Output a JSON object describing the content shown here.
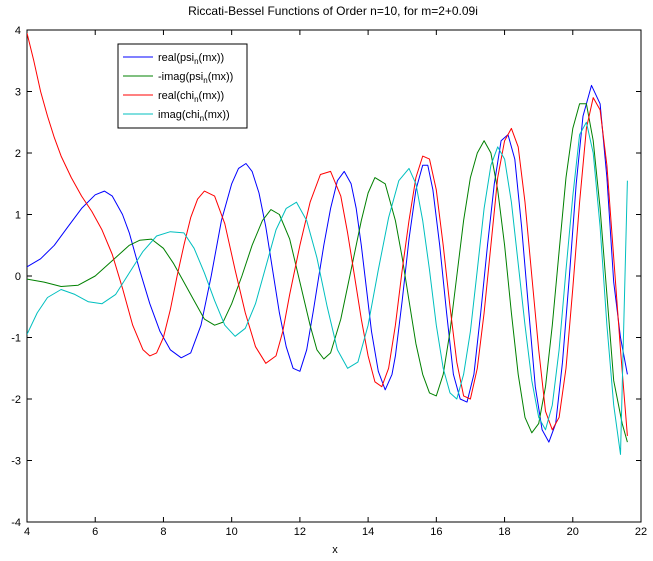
{
  "chart_data": {
    "type": "line",
    "title": "Riccati-Bessel Functions of Order n=10, for m=2+0.09i",
    "xlabel": "x",
    "ylabel": "",
    "xlim": [
      4,
      22
    ],
    "ylim": [
      -4,
      4
    ],
    "xticks": [
      4,
      6,
      8,
      10,
      12,
      14,
      16,
      18,
      20,
      22
    ],
    "yticks": [
      -4,
      -3,
      -2,
      -1,
      0,
      1,
      2,
      3,
      4
    ],
    "grid": false,
    "legend_position": "top-left",
    "series": [
      {
        "name": "real(psi_n(mx))",
        "legend_main": "real(psi",
        "legend_sub": "n",
        "legend_tail": "(mx))",
        "color": "#0000ff",
        "x": [
          4.0,
          4.4,
          4.8,
          5.2,
          5.6,
          6.0,
          6.27,
          6.5,
          6.8,
          7.0,
          7.3,
          7.6,
          7.9,
          8.2,
          8.52,
          8.8,
          9.1,
          9.4,
          9.7,
          10.0,
          10.2,
          10.42,
          10.6,
          10.8,
          11.0,
          11.2,
          11.4,
          11.6,
          11.8,
          12.0,
          12.2,
          12.4,
          12.5,
          12.7,
          12.9,
          13.1,
          13.3,
          13.5,
          13.65,
          13.8,
          13.95,
          14.1,
          14.3,
          14.5,
          14.7,
          14.8,
          15.0,
          15.2,
          15.4,
          15.6,
          15.75,
          15.9,
          16.1,
          16.3,
          16.5,
          16.7,
          16.9,
          17.1,
          17.3,
          17.5,
          17.7,
          17.9,
          18.1,
          18.3,
          18.5,
          18.7,
          18.9,
          19.1,
          19.3,
          19.5,
          19.7,
          19.9,
          20.1,
          20.3,
          20.55,
          20.8,
          21.0,
          21.2,
          21.4,
          21.6
        ],
        "y": [
          0.15,
          0.28,
          0.5,
          0.8,
          1.1,
          1.32,
          1.38,
          1.3,
          1.0,
          0.7,
          0.1,
          -0.45,
          -0.9,
          -1.2,
          -1.33,
          -1.25,
          -0.8,
          0.0,
          0.9,
          1.5,
          1.75,
          1.83,
          1.7,
          1.35,
          0.8,
          0.1,
          -0.6,
          -1.15,
          -1.5,
          -1.55,
          -1.2,
          -0.55,
          -0.2,
          0.5,
          1.1,
          1.55,
          1.7,
          1.5,
          1.1,
          0.5,
          -0.2,
          -0.9,
          -1.55,
          -1.85,
          -1.6,
          -1.3,
          -0.4,
          0.6,
          1.4,
          1.8,
          1.8,
          1.4,
          0.5,
          -0.6,
          -1.6,
          -2.0,
          -2.05,
          -1.6,
          -0.6,
          0.5,
          1.5,
          2.2,
          2.3,
          1.9,
          0.8,
          -0.5,
          -1.8,
          -2.5,
          -2.7,
          -2.4,
          -1.4,
          0.0,
          1.5,
          2.6,
          3.1,
          2.8,
          1.6,
          -0.1,
          -1.0,
          -1.6
        ]
      },
      {
        "name": "-imag(psi_n(mx))",
        "legend_main": "-imag(psi",
        "legend_sub": "n",
        "legend_tail": "(mx))",
        "color": "#008000",
        "x": [
          4.0,
          4.5,
          5.0,
          5.5,
          6.0,
          6.5,
          7.0,
          7.3,
          7.65,
          8.0,
          8.3,
          8.6,
          8.9,
          9.2,
          9.5,
          9.75,
          10.0,
          10.3,
          10.6,
          10.9,
          11.15,
          11.4,
          11.7,
          12.0,
          12.3,
          12.5,
          12.7,
          12.9,
          13.2,
          13.5,
          13.8,
          14.0,
          14.2,
          14.5,
          14.8,
          15.0,
          15.2,
          15.4,
          15.6,
          15.8,
          16.0,
          16.2,
          16.4,
          16.6,
          16.8,
          17.0,
          17.2,
          17.4,
          17.6,
          17.8,
          18.0,
          18.2,
          18.4,
          18.6,
          18.8,
          19.0,
          19.2,
          19.4,
          19.6,
          19.8,
          20.0,
          20.2,
          20.4,
          20.6,
          20.8,
          21.0,
          21.2,
          21.45,
          21.6
        ],
        "y": [
          -0.05,
          -0.1,
          -0.17,
          -0.15,
          0.0,
          0.25,
          0.5,
          0.58,
          0.6,
          0.45,
          0.2,
          -0.1,
          -0.4,
          -0.7,
          -0.8,
          -0.75,
          -0.45,
          0.0,
          0.5,
          0.9,
          1.08,
          1.0,
          0.6,
          -0.1,
          -0.8,
          -1.2,
          -1.35,
          -1.25,
          -0.7,
          0.1,
          0.9,
          1.35,
          1.6,
          1.5,
          0.9,
          0.3,
          -0.4,
          -1.1,
          -1.6,
          -1.9,
          -1.95,
          -1.6,
          -0.9,
          0.0,
          0.9,
          1.6,
          2.0,
          2.2,
          2.0,
          1.4,
          0.5,
          -0.6,
          -1.6,
          -2.3,
          -2.55,
          -2.4,
          -1.8,
          -0.8,
          0.4,
          1.6,
          2.4,
          2.8,
          2.8,
          2.2,
          1.1,
          -0.3,
          -1.7,
          -2.4,
          -2.7
        ]
      },
      {
        "name": "real(chi_n(mx))",
        "legend_main": "real(chi",
        "legend_sub": "n",
        "legend_tail": "(mx))",
        "color": "#ff0000",
        "x": [
          4.0,
          4.2,
          4.4,
          4.6,
          4.8,
          5.0,
          5.3,
          5.6,
          5.9,
          6.2,
          6.5,
          6.8,
          7.1,
          7.4,
          7.6,
          7.8,
          8.0,
          8.2,
          8.4,
          8.6,
          8.8,
          9.0,
          9.2,
          9.5,
          9.8,
          10.1,
          10.4,
          10.7,
          11.0,
          11.3,
          11.5,
          11.7,
          12.0,
          12.3,
          12.6,
          12.9,
          13.2,
          13.4,
          13.6,
          13.8,
          14.0,
          14.2,
          14.4,
          14.6,
          14.8,
          15.0,
          15.2,
          15.4,
          15.6,
          15.8,
          16.0,
          16.2,
          16.4,
          16.6,
          16.8,
          17.0,
          17.2,
          17.4,
          17.6,
          17.8,
          18.0,
          18.2,
          18.4,
          18.6,
          18.8,
          19.0,
          19.2,
          19.4,
          19.6,
          19.8,
          20.0,
          20.2,
          20.4,
          20.6,
          20.8,
          21.0,
          21.2,
          21.4,
          21.6
        ],
        "y": [
          3.95,
          3.5,
          3.0,
          2.6,
          2.25,
          1.95,
          1.6,
          1.3,
          1.05,
          0.75,
          0.35,
          -0.2,
          -0.8,
          -1.2,
          -1.3,
          -1.25,
          -1.0,
          -0.55,
          0.0,
          0.5,
          0.95,
          1.25,
          1.38,
          1.3,
          0.85,
          0.1,
          -0.6,
          -1.15,
          -1.42,
          -1.3,
          -0.9,
          -0.3,
          0.5,
          1.2,
          1.65,
          1.7,
          1.3,
          0.7,
          0.0,
          -0.7,
          -1.3,
          -1.72,
          -1.8,
          -1.5,
          -0.8,
          0.1,
          0.9,
          1.6,
          1.95,
          1.9,
          1.4,
          0.5,
          -0.5,
          -1.4,
          -1.95,
          -2.0,
          -1.5,
          -0.6,
          0.5,
          1.6,
          2.2,
          2.4,
          2.1,
          1.2,
          0.0,
          -1.2,
          -2.2,
          -2.5,
          -2.3,
          -1.5,
          -0.2,
          1.2,
          2.4,
          2.9,
          2.7,
          1.8,
          0.3,
          -1.2,
          -2.6
        ]
      },
      {
        "name": "imag(chi_n(mx))",
        "legend_main": "imag(chi",
        "legend_sub": "n",
        "legend_tail": "(mx))",
        "color": "#00bfbf",
        "x": [
          4.0,
          4.3,
          4.6,
          5.0,
          5.4,
          5.8,
          6.2,
          6.6,
          7.0,
          7.4,
          7.8,
          8.2,
          8.6,
          8.9,
          9.2,
          9.5,
          9.8,
          10.1,
          10.4,
          10.7,
          11.0,
          11.3,
          11.6,
          11.9,
          12.2,
          12.5,
          12.8,
          13.1,
          13.4,
          13.7,
          14.0,
          14.3,
          14.6,
          14.9,
          15.2,
          15.4,
          15.6,
          15.8,
          16.0,
          16.2,
          16.4,
          16.6,
          16.8,
          17.0,
          17.2,
          17.4,
          17.6,
          17.8,
          18.0,
          18.2,
          18.4,
          18.6,
          18.8,
          19.0,
          19.2,
          19.4,
          19.6,
          19.8,
          20.0,
          20.2,
          20.4,
          20.6,
          20.8,
          21.0,
          21.2,
          21.4,
          21.6
        ],
        "y": [
          -0.95,
          -0.6,
          -0.35,
          -0.22,
          -0.3,
          -0.42,
          -0.45,
          -0.3,
          0.05,
          0.4,
          0.65,
          0.72,
          0.7,
          0.45,
          0.05,
          -0.4,
          -0.8,
          -0.98,
          -0.85,
          -0.45,
          0.15,
          0.75,
          1.1,
          1.2,
          0.9,
          0.3,
          -0.5,
          -1.2,
          -1.5,
          -1.4,
          -0.8,
          0.1,
          0.95,
          1.55,
          1.75,
          1.5,
          0.9,
          0.1,
          -0.8,
          -1.5,
          -1.9,
          -2.0,
          -1.6,
          -0.9,
          0.1,
          1.1,
          1.8,
          2.1,
          1.9,
          1.2,
          0.2,
          -0.8,
          -1.7,
          -2.3,
          -2.5,
          -2.1,
          -1.2,
          0.1,
          1.3,
          2.3,
          2.5,
          2.0,
          0.8,
          -0.8,
          -2.1,
          -2.9,
          1.55
        ]
      }
    ]
  }
}
